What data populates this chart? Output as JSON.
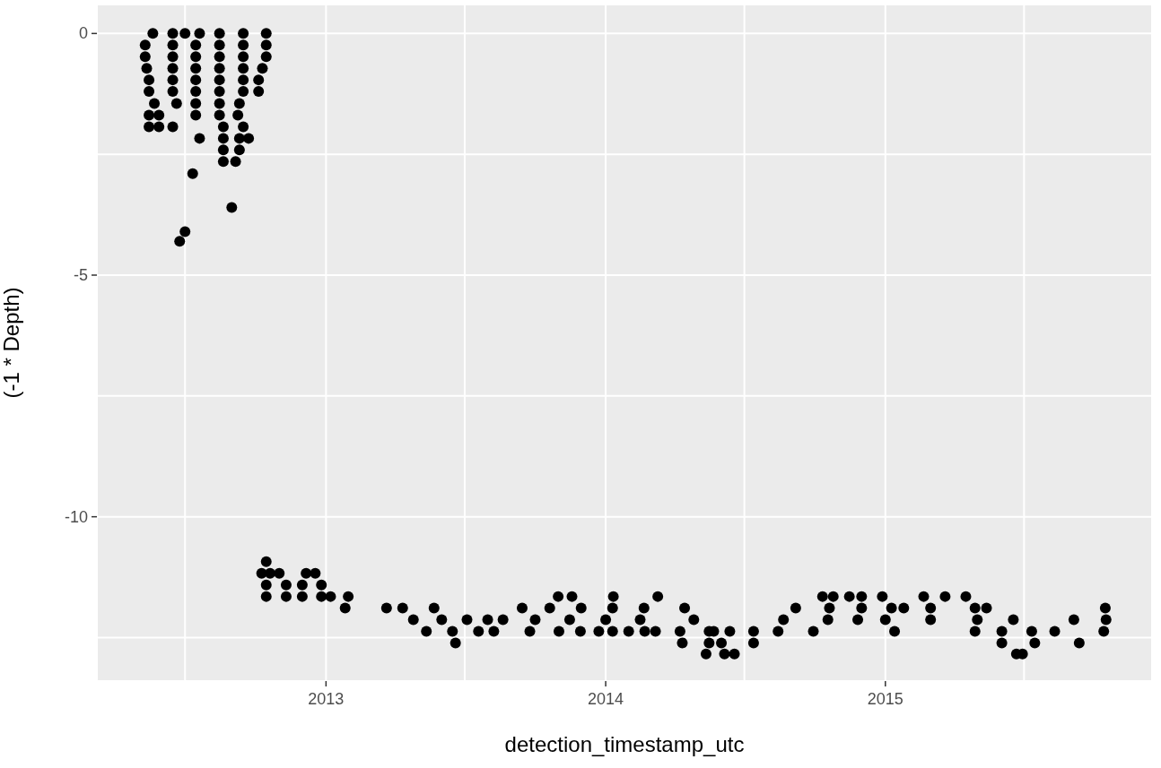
{
  "chart_data": {
    "type": "scatter",
    "xlabel": "detection_timestamp_utc",
    "ylabel": "(-1 * Depth)",
    "color": "#000000",
    "marker": "circle",
    "grid": true,
    "xlim": [
      "2012-03-08",
      "2015-12-15"
    ],
    "xticks": [
      {
        "value": "2012-07",
        "label": null
      },
      "2013",
      {
        "value": "2013-07",
        "label": null
      },
      "2014",
      {
        "value": "2014-07",
        "label": null
      },
      "2015",
      {
        "value": "2015-07",
        "label": null
      }
    ],
    "ylim": [
      -13.4,
      0.6
    ],
    "yticks": [
      -10,
      {
        "value": -12.5,
        "label": null
      },
      {
        "value": -7.5,
        "label": null
      },
      -5,
      {
        "value": -2.5,
        "label": null
      },
      0
    ],
    "x": [
      "2012-05-20",
      "2012-06-15",
      "2012-07-01",
      "2012-07-20",
      "2012-08-15",
      "2012-09-15",
      "2012-10-15",
      "2012-05-10",
      "2012-06-15",
      "2012-07-15",
      "2012-08-15",
      "2012-09-15",
      "2012-10-15",
      "2012-05-10",
      "2012-06-15",
      "2012-07-15",
      "2012-08-15",
      "2012-09-15",
      "2012-10-15",
      "2012-05-12",
      "2012-06-15",
      "2012-07-15",
      "2012-08-15",
      "2012-09-15",
      "2012-10-10",
      "2012-05-15",
      "2012-06-15",
      "2012-07-15",
      "2012-08-15",
      "2012-09-15",
      "2012-10-05",
      "2012-05-15",
      "2012-06-15",
      "2012-07-15",
      "2012-08-15",
      "2012-09-15",
      "2012-10-05",
      "2012-05-22",
      "2012-06-20",
      "2012-07-15",
      "2012-08-15",
      "2012-09-10",
      "2012-05-15",
      "2012-05-28",
      "2012-07-15",
      "2012-08-15",
      "2012-09-08",
      "2012-05-15",
      "2012-05-28",
      "2012-06-15",
      "2012-08-20",
      "2012-09-15",
      "2012-07-20",
      "2012-08-20",
      "2012-09-10",
      "2012-09-22",
      "2012-08-20",
      "2012-09-10",
      "2012-08-20",
      "2012-09-05",
      "2012-07-11",
      "2012-08-31",
      "2012-07-01",
      "2012-06-24",
      "2012-10-15",
      "2012-10-09",
      "2012-10-20",
      "2012-11-01",
      "2012-12-06",
      "2012-12-18",
      "2012-10-15",
      "2012-11-10",
      "2012-12-01",
      "2012-12-26",
      "2012-10-15",
      "2012-11-10",
      "2012-12-01",
      "2012-12-26",
      "2013-01-07",
      "2013-01-30",
      "2013-10-31",
      "2013-11-18",
      "2014-01-11",
      "2014-03-10",
      "2014-10-11",
      "2014-10-25",
      "2014-11-15",
      "2014-12-01",
      "2014-12-28",
      "2015-02-20",
      "2015-03-20",
      "2015-04-16",
      "2013-01-26",
      "2013-03-21",
      "2013-04-11",
      "2013-05-22",
      "2013-09-14",
      "2013-10-20",
      "2013-11-30",
      "2014-01-10",
      "2014-02-20",
      "2014-04-14",
      "2014-09-06",
      "2014-10-20",
      "2014-12-01",
      "2015-01-09",
      "2015-01-25",
      "2015-03-01",
      "2015-04-28",
      "2015-05-13",
      "2015-10-15",
      "2013-04-25",
      "2013-06-01",
      "2013-07-04",
      "2013-07-31",
      "2013-08-20",
      "2013-10-01",
      "2013-11-15",
      "2014-01-01",
      "2014-02-15",
      "2014-04-26",
      "2014-08-21",
      "2014-10-18",
      "2014-11-26",
      "2015-01-01",
      "2015-03-01",
      "2015-05-01",
      "2015-06-17",
      "2015-09-04",
      "2015-10-16",
      "2013-05-12",
      "2013-06-15",
      "2013-07-19",
      "2013-08-08",
      "2013-09-24",
      "2013-11-01",
      "2013-11-29",
      "2013-12-23",
      "2014-01-10",
      "2014-01-31",
      "2014-02-21",
      "2014-03-07",
      "2014-04-08",
      "2014-05-16",
      "2014-05-22",
      "2014-06-12",
      "2014-07-13",
      "2014-08-14",
      "2014-09-29",
      "2015-01-13",
      "2015-04-28",
      "2015-06-02",
      "2015-07-11",
      "2015-08-10",
      "2015-10-13",
      "2013-06-19",
      "2014-04-11",
      "2014-05-16",
      "2014-06-01",
      "2014-07-13",
      "2015-06-02",
      "2015-07-15",
      "2015-09-11",
      "2014-05-12",
      "2014-06-05",
      "2014-06-18",
      "2015-06-21",
      "2015-06-29"
    ],
    "values": [
      0,
      0,
      0,
      0,
      0,
      0,
      0,
      -0.24,
      -0.24,
      -0.24,
      -0.24,
      -0.24,
      -0.24,
      -0.48,
      -0.48,
      -0.48,
      -0.48,
      -0.48,
      -0.48,
      -0.72,
      -0.72,
      -0.72,
      -0.72,
      -0.72,
      -0.72,
      -0.96,
      -0.96,
      -0.96,
      -0.96,
      -0.96,
      -0.96,
      -1.2,
      -1.2,
      -1.2,
      -1.2,
      -1.2,
      -1.2,
      -1.45,
      -1.45,
      -1.45,
      -1.45,
      -1.45,
      -1.69,
      -1.69,
      -1.69,
      -1.69,
      -1.69,
      -1.93,
      -1.93,
      -1.93,
      -1.93,
      -1.93,
      -2.17,
      -2.17,
      -2.17,
      -2.17,
      -2.41,
      -2.41,
      -2.65,
      -2.65,
      -2.9,
      -3.6,
      -4.1,
      -4.3,
      -10.93,
      -11.17,
      -11.17,
      -11.17,
      -11.17,
      -11.17,
      -11.41,
      -11.41,
      -11.41,
      -11.41,
      -11.65,
      -11.65,
      -11.65,
      -11.65,
      -11.65,
      -11.65,
      -11.65,
      -11.65,
      -11.65,
      -11.65,
      -11.65,
      -11.65,
      -11.65,
      -11.65,
      -11.65,
      -11.65,
      -11.65,
      -11.65,
      -11.89,
      -11.89,
      -11.89,
      -11.89,
      -11.89,
      -11.89,
      -11.89,
      -11.89,
      -11.89,
      -11.89,
      -11.89,
      -11.89,
      -11.89,
      -11.89,
      -11.89,
      -11.89,
      -11.89,
      -11.89,
      -11.89,
      -12.13,
      -12.13,
      -12.13,
      -12.13,
      -12.13,
      -12.13,
      -12.13,
      -12.13,
      -12.13,
      -12.13,
      -12.13,
      -12.13,
      -12.13,
      -12.13,
      -12.13,
      -12.13,
      -12.13,
      -12.13,
      -12.13,
      -12.37,
      -12.37,
      -12.37,
      -12.37,
      -12.37,
      -12.37,
      -12.37,
      -12.37,
      -12.37,
      -12.37,
      -12.37,
      -12.37,
      -12.37,
      -12.37,
      -12.37,
      -12.37,
      -12.37,
      -12.37,
      -12.37,
      -12.37,
      -12.37,
      -12.37,
      -12.37,
      -12.37,
      -12.37,
      -12.61,
      -12.61,
      -12.61,
      -12.61,
      -12.61,
      -12.61,
      -12.61,
      -12.61,
      -12.84,
      -12.84,
      -12.84,
      -12.84,
      -12.84
    ]
  }
}
